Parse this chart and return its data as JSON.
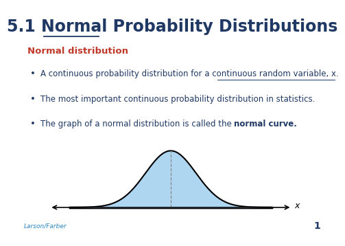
{
  "title": "5.1 Normal Probability Distributions",
  "title_fontsize": 17,
  "title_color": "#1F3864",
  "heading": "Normal distribution",
  "heading_color": "#C0392B",
  "heading_fontsize": 9.5,
  "bullet1_pre": "A continuous probability distribution for a ",
  "bullet1_ul": "continuous random variable, x",
  "bullet1_post": ".",
  "bullet2": "The most important continuous probability distribution in statistics.",
  "bullet3_pre": "The graph of a normal distribution is called the ",
  "bullet3_bold": "normal curve",
  "bullet3_post": ".",
  "bullet_fontsize": 8.5,
  "bullet_color": "#1F3864",
  "curve_fill_color": "#AED6F1",
  "curve_line_color": "#000000",
  "axis_color": "#000000",
  "dashed_line_color": "#888888",
  "x_label": "x",
  "footer_text": "Larson/Farber",
  "footer_color": "#2E86C1",
  "footer_fontsize": 6.5,
  "page_number": "1",
  "page_num_fontsize": 10,
  "background_color": "#FFFFFF"
}
